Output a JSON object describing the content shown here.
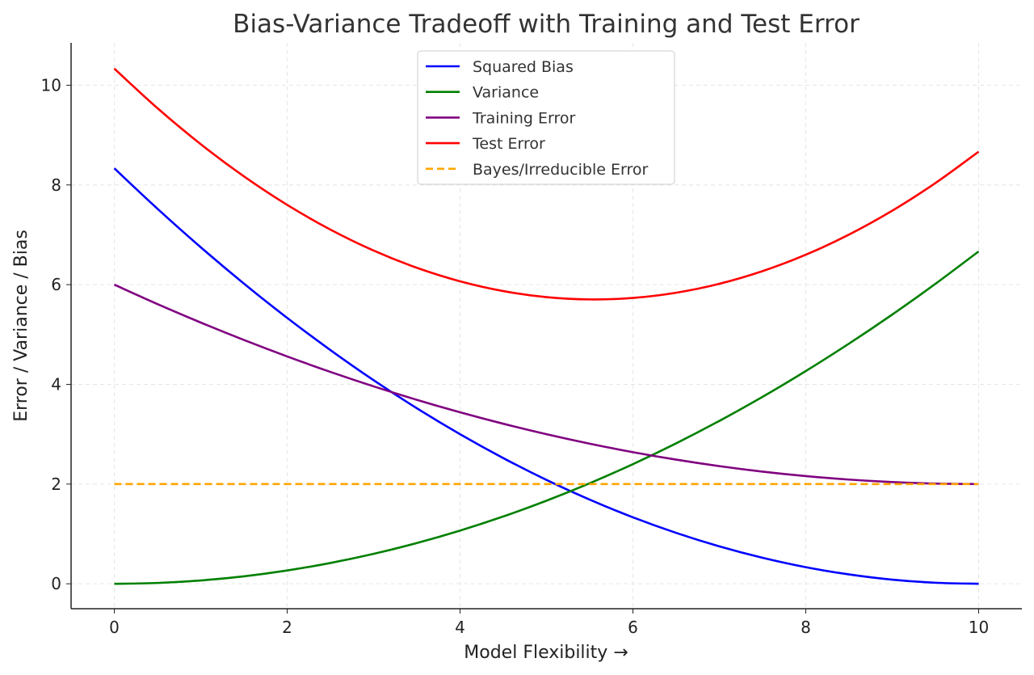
{
  "chart_data": {
    "type": "line",
    "title": "Bias-Variance Tradeoff with Training and Test Error",
    "xlabel": "Model Flexibility →",
    "ylabel": "Error / Variance / Bias",
    "xlim": [
      -0.5,
      10.5
    ],
    "ylim": [
      -0.5,
      10.85
    ],
    "xticks": [
      0,
      2,
      4,
      6,
      8,
      10
    ],
    "yticks": [
      0,
      2,
      4,
      6,
      8,
      10
    ],
    "grid": true,
    "legend_position": "top-center",
    "x": [
      0,
      0.5,
      1,
      1.5,
      2,
      2.5,
      3,
      3.5,
      4,
      4.5,
      5,
      5.5,
      6,
      6.5,
      7,
      7.5,
      8,
      8.5,
      9,
      9.5,
      10
    ],
    "series": [
      {
        "name": "Squared Bias",
        "color": "#0000ff",
        "dash": false,
        "values": [
          8.333,
          7.521,
          6.75,
          6.021,
          5.333,
          4.688,
          4.083,
          3.521,
          3.0,
          2.521,
          2.083,
          1.688,
          1.333,
          1.021,
          0.75,
          0.521,
          0.333,
          0.188,
          0.083,
          0.021,
          0
        ]
      },
      {
        "name": "Variance",
        "color": "#008000",
        "dash": false,
        "values": [
          0,
          0.017,
          0.067,
          0.15,
          0.267,
          0.417,
          0.6,
          0.817,
          1.067,
          1.35,
          1.667,
          2.017,
          2.4,
          2.817,
          3.267,
          3.75,
          4.267,
          4.817,
          5.4,
          6.017,
          6.667
        ]
      },
      {
        "name": "Training Error",
        "color": "#800080",
        "dash": false,
        "values": [
          6.0,
          5.61,
          5.24,
          4.89,
          4.56,
          4.25,
          3.96,
          3.69,
          3.44,
          3.21,
          3.0,
          2.81,
          2.64,
          2.49,
          2.36,
          2.25,
          2.16,
          2.09,
          2.04,
          2.01,
          2.0
        ]
      },
      {
        "name": "Test Error",
        "color": "#ff0000",
        "dash": false,
        "values": [
          10.333,
          9.538,
          8.817,
          8.171,
          7.6,
          7.104,
          6.683,
          6.338,
          6.067,
          5.871,
          5.75,
          5.704,
          5.733,
          5.838,
          6.017,
          6.271,
          6.6,
          7.004,
          7.483,
          8.038,
          8.667
        ]
      },
      {
        "name": "Bayes/Irreducible Error",
        "color": "#ffa500",
        "dash": true,
        "values": [
          2,
          2,
          2,
          2,
          2,
          2,
          2,
          2,
          2,
          2,
          2,
          2,
          2,
          2,
          2,
          2,
          2,
          2,
          2,
          2,
          2
        ]
      }
    ]
  }
}
